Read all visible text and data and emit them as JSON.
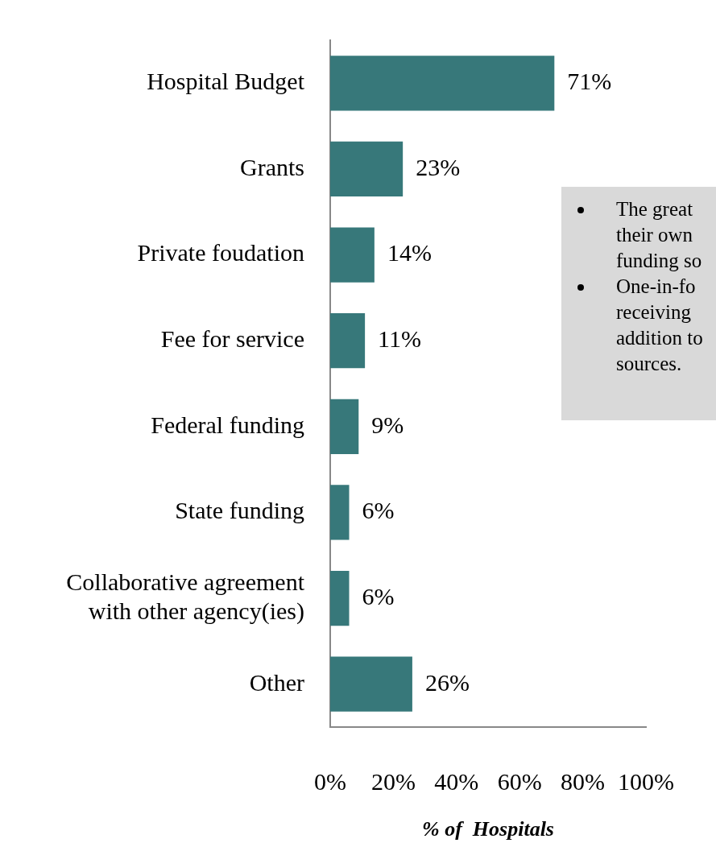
{
  "chart_data": {
    "type": "bar",
    "orientation": "horizontal",
    "xlabel": "% of  Hospitals",
    "categories": [
      "Hospital Budget",
      "Grants",
      "Private foudation",
      "Fee for service",
      "Federal funding",
      "State funding",
      "Collaborative agreement with other agency(ies)",
      "Other"
    ],
    "values": [
      71,
      23,
      14,
      11,
      9,
      6,
      6,
      26
    ],
    "value_labels": [
      "71%",
      "23%",
      "14%",
      "11%",
      "9%",
      "6%",
      "6%",
      "26%"
    ],
    "color": "#37787a",
    "xlim": [
      0,
      100
    ],
    "xticks": [
      {
        "value": 0,
        "label": "0%"
      },
      {
        "value": 20,
        "label": "20%"
      },
      {
        "value": 40,
        "label": "40%"
      },
      {
        "value": 60,
        "label": "60%"
      },
      {
        "value": 80,
        "label": "80%"
      },
      {
        "value": 100,
        "label": "100%"
      }
    ],
    "grid": false,
    "legend": false,
    "annotations": [
      "The great\ntheir own\nfunding so",
      "One-in-fo\nreceiving\naddition to\nsources."
    ]
  }
}
